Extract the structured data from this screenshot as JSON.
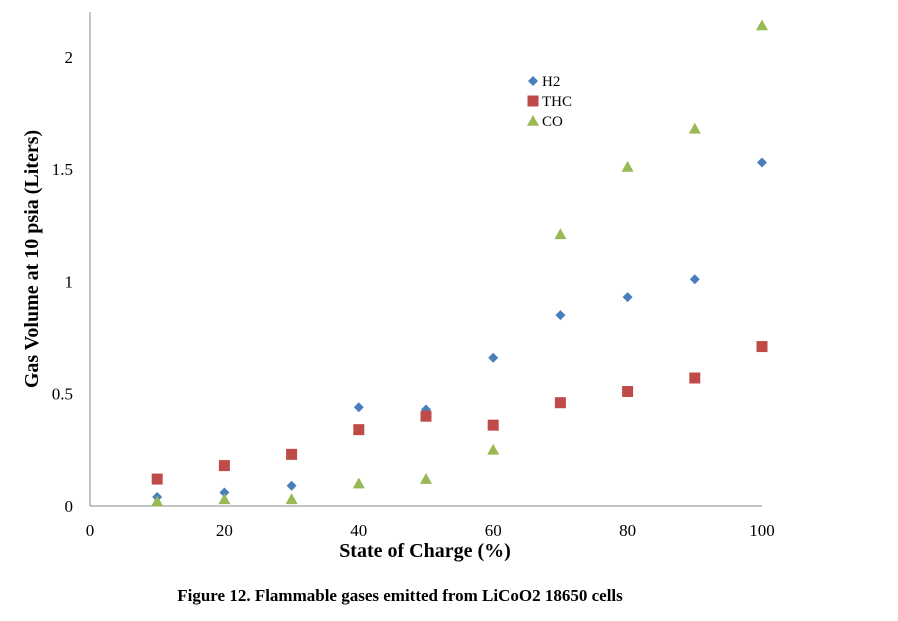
{
  "caption": "Figure 12. Flammable gases emitted from LiCoO2 18650 cells",
  "colors": {
    "h2": "#4a7ebb",
    "thc": "#be4b48",
    "co": "#98b954",
    "axis": "#888888"
  },
  "chart_data": {
    "type": "scatter",
    "title": "",
    "xlabel": "State of Charge (%)",
    "ylabel": "Gas Volume at 10 psia (Liters)",
    "xlim": [
      0,
      100
    ],
    "ylim": [
      0,
      2.2
    ],
    "xticks": [
      0,
      20,
      40,
      60,
      80,
      100
    ],
    "yticks": [
      0,
      0.5,
      1,
      1.5,
      2
    ],
    "xtick_labels": [
      "0",
      "20",
      "40",
      "60",
      "80",
      "100"
    ],
    "ytick_labels": [
      "0",
      "0.5",
      "1",
      "1.5",
      "2"
    ],
    "grid": false,
    "legend_position": "top-center",
    "x": [
      10,
      20,
      30,
      40,
      50,
      60,
      70,
      80,
      90,
      100
    ],
    "series": [
      {
        "name": "H2",
        "marker": "diamond",
        "color": "#4a7ebb",
        "values": [
          0.04,
          0.06,
          0.09,
          0.44,
          0.43,
          0.66,
          0.85,
          0.93,
          1.01,
          1.53
        ]
      },
      {
        "name": "THC",
        "marker": "square",
        "color": "#be4b48",
        "values": [
          0.12,
          0.18,
          0.23,
          0.34,
          0.4,
          0.36,
          0.46,
          0.51,
          0.57,
          0.71
        ]
      },
      {
        "name": "CO",
        "marker": "triangle",
        "color": "#98b954",
        "values": [
          0.02,
          0.03,
          0.03,
          0.1,
          0.12,
          0.25,
          1.21,
          1.51,
          1.68,
          2.14
        ]
      }
    ]
  }
}
